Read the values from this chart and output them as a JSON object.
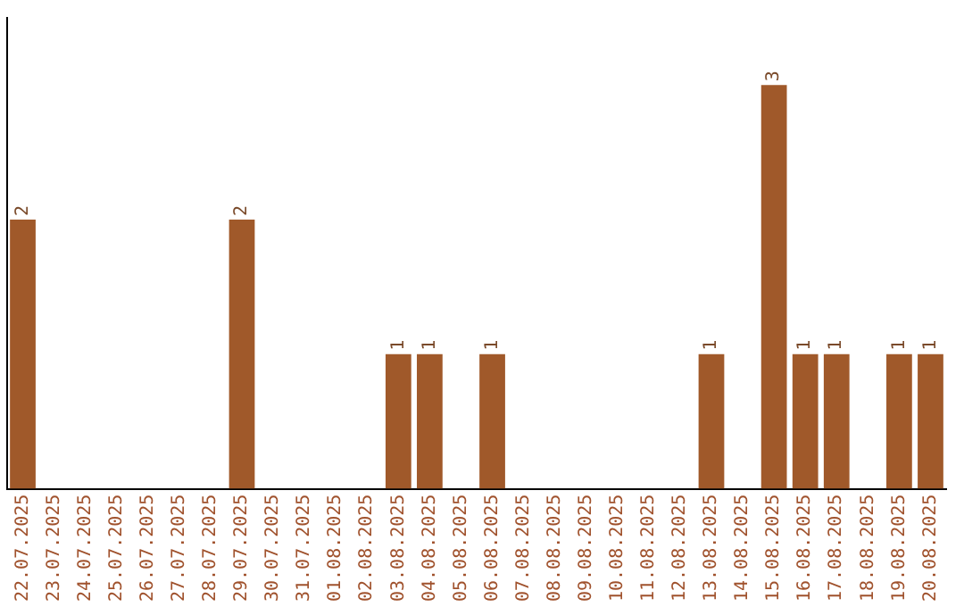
{
  "chart_data": {
    "type": "bar",
    "categories": [
      "22.07.2025",
      "23.07.2025",
      "24.07.2025",
      "25.07.2025",
      "26.07.2025",
      "27.07.2025",
      "28.07.2025",
      "29.07.2025",
      "30.07.2025",
      "31.07.2025",
      "01.08.2025",
      "02.08.2025",
      "03.08.2025",
      "04.08.2025",
      "05.08.2025",
      "06.08.2025",
      "07.08.2025",
      "08.08.2025",
      "09.08.2025",
      "10.08.2025",
      "11.08.2025",
      "12.08.2025",
      "13.08.2025",
      "14.08.2025",
      "15.08.2025",
      "16.08.2025",
      "17.08.2025",
      "18.08.2025",
      "19.08.2025",
      "20.08.2025"
    ],
    "values": [
      2,
      0,
      0,
      0,
      0,
      0,
      0,
      2,
      0,
      0,
      0,
      0,
      1,
      1,
      0,
      1,
      0,
      0,
      0,
      0,
      0,
      0,
      1,
      0,
      3,
      1,
      1,
      0,
      1,
      1
    ],
    "value_labels": [
      "2",
      null,
      null,
      null,
      null,
      null,
      null,
      "2",
      null,
      null,
      null,
      null,
      "1",
      "1",
      null,
      "1",
      null,
      null,
      null,
      null,
      null,
      null,
      "1",
      null,
      "3",
      "1",
      "1",
      null,
      "1",
      "1"
    ],
    "color": "#a0592a",
    "grid": false,
    "legend": false,
    "tick_labels": "x"
  }
}
